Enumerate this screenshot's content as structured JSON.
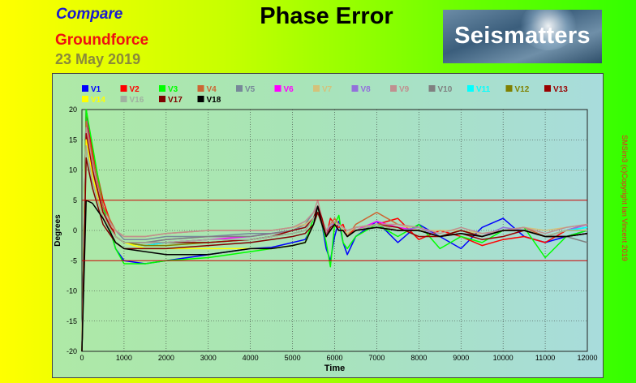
{
  "header": {
    "compare_label": "Compare",
    "source_label": "Groundforce",
    "date_label": "23 May 2019",
    "title": "Phase Error",
    "logo_text": "Seismatters",
    "copyright": "SMSim3 (c)Copyright Ian Vincent 2019"
  },
  "chart_data": {
    "type": "line",
    "title": "Phase Error",
    "xlabel": "Time",
    "ylabel": "Degrees",
    "xlim": [
      0,
      12000
    ],
    "ylim": [
      -20,
      20
    ],
    "x_ticks": [
      0,
      1000,
      2000,
      3000,
      4000,
      5000,
      6000,
      7000,
      8000,
      9000,
      10000,
      11000,
      12000
    ],
    "y_ticks": [
      20,
      15,
      10,
      5,
      0,
      -5,
      -10,
      -15,
      -20
    ],
    "grid": true,
    "legend_placement": "top",
    "reference_lines": [
      5,
      -5
    ],
    "reference_color": "#cc0000",
    "x": [
      0,
      100,
      250,
      500,
      800,
      1000,
      1500,
      2000,
      3000,
      4000,
      4500,
      5000,
      5300,
      5500,
      5600,
      5700,
      5800,
      5900,
      6000,
      6100,
      6200,
      6300,
      6500,
      7000,
      7500,
      8000,
      8500,
      9000,
      9500,
      10000,
      10500,
      11000,
      11500,
      12000
    ],
    "series": [
      {
        "name": "V1",
        "color": "#0000ff",
        "values": [
          -20,
          20,
          12,
          4,
          -3,
          -5,
          -5.5,
          -5,
          -4,
          -3,
          -2.8,
          -2,
          -1.5,
          1,
          3,
          1,
          -3,
          -5,
          -1,
          1.5,
          -2,
          -4,
          -1,
          1.5,
          -2,
          1,
          -1,
          -3,
          0.5,
          2,
          -1,
          -2,
          -1,
          0
        ]
      },
      {
        "name": "V2",
        "color": "#ff0000",
        "values": [
          -20,
          20,
          13,
          5,
          -1,
          -2,
          -2.5,
          -2,
          -1.5,
          -1.5,
          -1,
          0,
          1,
          2,
          4,
          2,
          -1,
          2,
          1,
          0.5,
          1,
          -1,
          0.5,
          1,
          2,
          -1.5,
          0,
          -1,
          -2.5,
          -1.5,
          -1,
          -2,
          0,
          1
        ]
      },
      {
        "name": "V3",
        "color": "#00ff00",
        "values": [
          -20,
          20,
          14,
          4,
          -3,
          -5.5,
          -5.5,
          -5,
          -4.5,
          -3.5,
          -3,
          -2.5,
          -2,
          2,
          4,
          1,
          -2,
          -6,
          1,
          2.5,
          -2,
          -3,
          -1,
          1,
          -1,
          1,
          -3,
          -1,
          -2,
          0,
          0.5,
          -4.5,
          -1,
          0
        ]
      },
      {
        "name": "V4",
        "color": "#cc6633",
        "values": [
          -20,
          18,
          12,
          4,
          0,
          -1,
          -1,
          -0.5,
          0,
          0,
          0,
          0.5,
          1,
          2,
          4,
          2,
          0,
          1,
          2,
          1,
          0,
          -1,
          1,
          3,
          1,
          0,
          -1,
          0,
          -1,
          0,
          0.5,
          -1,
          0,
          1
        ]
      },
      {
        "name": "V5",
        "color": "#778899",
        "values": [
          -20,
          17,
          10,
          3,
          0,
          -1.5,
          -1.5,
          -1,
          -1,
          -0.5,
          -0.5,
          0,
          1,
          3,
          4,
          2,
          0,
          1,
          1,
          0,
          0,
          -1,
          0,
          1,
          0,
          0,
          -1,
          0,
          -1,
          0,
          0,
          -1,
          0,
          0.5
        ]
      },
      {
        "name": "V6",
        "color": "#ff00ff",
        "values": [
          -20,
          16,
          10,
          3,
          -1,
          -2,
          -2,
          -2,
          -1.5,
          -1,
          -0.5,
          0,
          0.5,
          2,
          3,
          1,
          -1,
          1,
          1,
          0,
          0,
          -1,
          0,
          1.5,
          0.5,
          0,
          -1,
          0,
          -1,
          0,
          0,
          -1,
          0,
          1
        ]
      },
      {
        "name": "V7",
        "color": "#d4c27a",
        "values": [
          -20,
          16,
          9,
          2,
          0,
          -1,
          -1,
          -0.5,
          0,
          0,
          0,
          0.5,
          1,
          2,
          3,
          2,
          0,
          1,
          1,
          1,
          0,
          -0.5,
          0.5,
          1,
          1,
          0,
          0,
          0,
          -0.5,
          0,
          0.5,
          0,
          0.5,
          1
        ]
      },
      {
        "name": "V8",
        "color": "#9370db",
        "values": [
          -20,
          17,
          11,
          3,
          -1,
          -2,
          -2,
          -1.5,
          -1,
          -1,
          -0.5,
          0,
          0.5,
          2,
          4,
          2,
          -1,
          1,
          1,
          0,
          0,
          -1,
          0,
          1,
          0,
          0.5,
          -1,
          0,
          -1,
          0.5,
          0,
          -1,
          0,
          1
        ]
      },
      {
        "name": "V9",
        "color": "#c09090",
        "values": [
          -20,
          17,
          11,
          3,
          0,
          -1,
          -1,
          -0.5,
          0,
          0,
          0,
          0.5,
          1.5,
          3,
          5,
          2,
          0,
          1,
          1.5,
          1,
          0.5,
          0,
          0.5,
          1,
          1,
          0.5,
          -0.5,
          0.5,
          -0.5,
          0,
          0.5,
          -0.5,
          0.5,
          1
        ]
      },
      {
        "name": "V10",
        "color": "#808080",
        "values": [
          -20,
          16,
          10,
          3,
          -1,
          -2,
          -2,
          -1.5,
          -1,
          -1,
          -0.5,
          0,
          0.5,
          2,
          3,
          1,
          -1,
          0.5,
          1,
          0,
          0,
          -1,
          0,
          1,
          0,
          0,
          -1,
          0,
          -1,
          0,
          0,
          -1,
          -1,
          -2
        ]
      },
      {
        "name": "V11",
        "color": "#00ffff",
        "values": [
          -20,
          15,
          9,
          2,
          -1,
          -2,
          -2.5,
          -2,
          -2,
          -1.5,
          -1,
          0,
          0.5,
          2,
          3,
          1,
          -1,
          0.5,
          1,
          0,
          0,
          -1,
          0,
          1,
          0,
          0,
          -1,
          0,
          -1,
          0,
          0,
          -1,
          0,
          0.5
        ]
      },
      {
        "name": "V12",
        "color": "#808000",
        "values": [
          -20,
          14,
          9,
          2,
          -1,
          -2,
          -2.5,
          -2.5,
          -2,
          -1.5,
          -1,
          -0.5,
          0,
          2,
          3,
          1,
          -1,
          0,
          1,
          0,
          0,
          -1,
          0,
          1,
          0,
          0,
          -1,
          0,
          -1,
          0,
          0,
          -1,
          0,
          0
        ]
      },
      {
        "name": "V13",
        "color": "#990000",
        "values": [
          -20,
          16,
          10,
          3,
          -1,
          -2,
          -2,
          -2,
          -2,
          -1.5,
          -1,
          0,
          0.5,
          2,
          4,
          2,
          -1,
          0.5,
          1,
          0,
          0,
          -1,
          0,
          1,
          0.5,
          -1,
          -1,
          -0.5,
          -1.5,
          -1,
          0,
          -1,
          -1,
          -0.5
        ]
      },
      {
        "name": "V14",
        "color": "#ffff00",
        "values": [
          -20,
          15,
          9,
          2,
          -1,
          -2,
          -3,
          -3,
          -3,
          -3,
          -3,
          -2.5,
          -2,
          1,
          3,
          1,
          -1,
          0,
          1,
          0,
          0,
          -1,
          0,
          1,
          0,
          0,
          -1,
          0,
          -1,
          0,
          0,
          -1,
          0,
          0
        ]
      },
      {
        "name": "V16",
        "color": "#a0b0a0",
        "values": [
          -20,
          14,
          8,
          2,
          -1,
          -2,
          -2,
          -2,
          -1.5,
          -1.5,
          -1,
          -0.5,
          0,
          2,
          3,
          1,
          -1,
          0,
          1,
          0,
          0,
          -1,
          0,
          1,
          0,
          0,
          -1,
          0,
          -1,
          0,
          0,
          -1,
          0,
          0
        ]
      },
      {
        "name": "V17",
        "color": "#800000",
        "values": [
          -20,
          12,
          7,
          1,
          -2,
          -3,
          -3,
          -3,
          -2.5,
          -2,
          -1.5,
          -1,
          -0.5,
          1,
          3,
          1,
          -1,
          0,
          1,
          0,
          0,
          -1,
          0,
          0.5,
          0,
          0,
          -1,
          0,
          -1,
          0,
          0,
          -1,
          -1,
          -0.5
        ]
      },
      {
        "name": "V18",
        "color": "#000000",
        "values": [
          -20,
          5,
          4.5,
          2,
          -2,
          -3,
          -3.5,
          -4,
          -4,
          -3,
          -3,
          -2.5,
          -2,
          1,
          4,
          1,
          -1,
          0,
          1,
          0,
          0,
          -1,
          0,
          0.5,
          0,
          0,
          -1,
          -0.5,
          -1,
          0,
          0,
          -1,
          -1,
          -0.5
        ]
      }
    ]
  }
}
